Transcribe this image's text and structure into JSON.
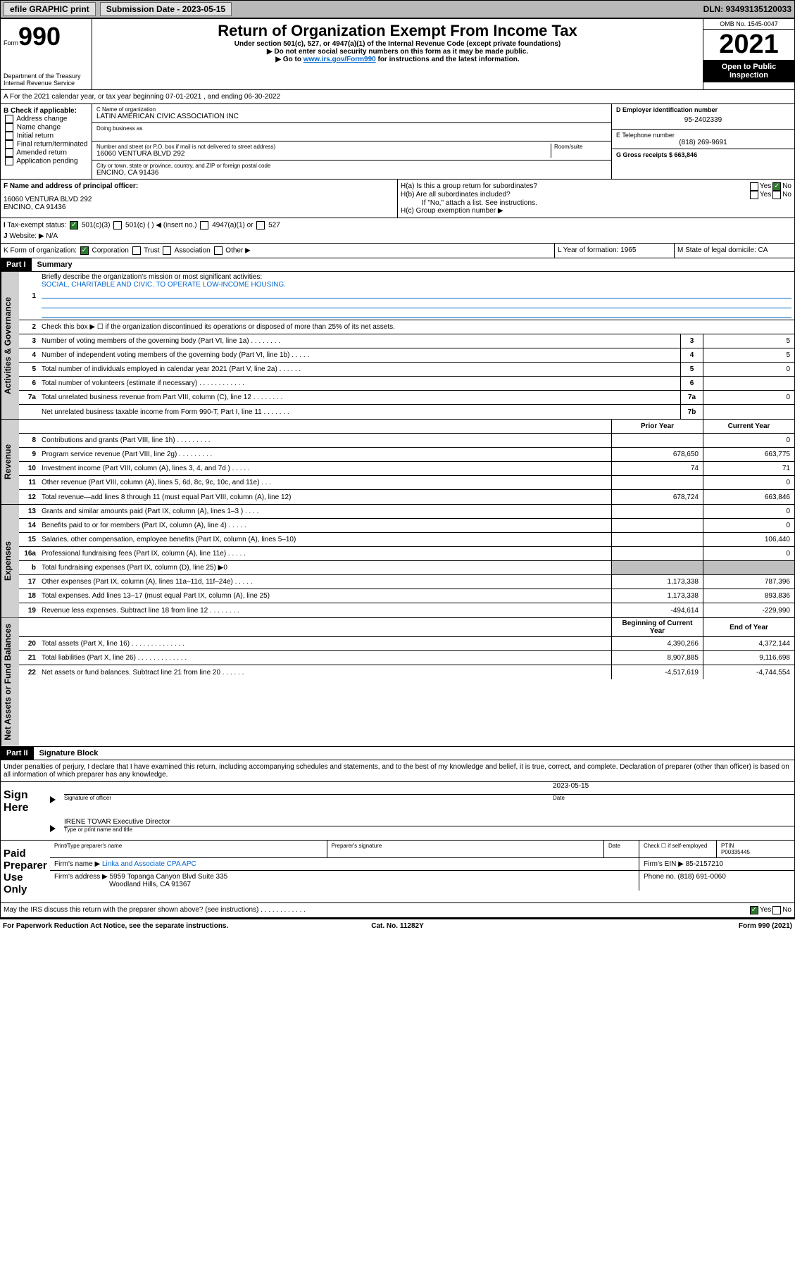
{
  "topbar": {
    "efile": "efile GRAPHIC print",
    "submission": "Submission Date - 2023-05-15",
    "dln": "DLN: 93493135120033"
  },
  "header": {
    "form": "Form",
    "num": "990",
    "dept": "Department of the Treasury",
    "irs": "Internal Revenue Service",
    "title": "Return of Organization Exempt From Income Tax",
    "sub1": "Under section 501(c), 527, or 4947(a)(1) of the Internal Revenue Code (except private foundations)",
    "sub2": "▶ Do not enter social security numbers on this form as it may be made public.",
    "sub3_pre": "▶ Go to ",
    "sub3_link": "www.irs.gov/Form990",
    "sub3_post": " for instructions and the latest information.",
    "omb": "OMB No. 1545-0047",
    "year": "2021",
    "inspect": "Open to Public Inspection"
  },
  "sectionA": {
    "line": "A For the 2021 calendar year, or tax year beginning 07-01-2021    , and ending 06-30-2022",
    "b_label": "B Check if applicable:",
    "b_items": [
      "Address change",
      "Name change",
      "Initial return",
      "Final return/terminated",
      "Amended return",
      "Application pending"
    ],
    "c_label": "C Name of organization",
    "c_name": "LATIN AMERICAN CIVIC ASSOCIATION INC",
    "dba": "Doing business as",
    "addr_label": "Number and street (or P.O. box if mail is not delivered to street address)",
    "room": "Room/suite",
    "addr": "16060 VENTURA BLVD 292",
    "city_label": "City or town, state or province, country, and ZIP or foreign postal code",
    "city": "ENCINO, CA  91436",
    "d_label": "D Employer identification number",
    "d_val": "95-2402339",
    "e_label": "E Telephone number",
    "e_val": "(818) 269-9691",
    "g_label": "G Gross receipts $ 663,846",
    "f_label": "F Name and address of principal officer:",
    "f_addr1": "16060 VENTURA BLVD 292",
    "f_addr2": "ENCINO, CA  91436",
    "ha": "H(a)  Is this a group return for subordinates?",
    "hb": "H(b)  Are all subordinates included?",
    "hb_note": "If \"No,\" attach a list. See instructions.",
    "hc": "H(c)  Group exemption number ▶",
    "i_label": "Tax-exempt status:",
    "i_501c3": "501(c)(3)",
    "i_501c": "501(c) (  ) ◀ (insert no.)",
    "i_4947": "4947(a)(1) or",
    "i_527": "527",
    "j_label": "Website: ▶",
    "j_val": "N/A",
    "k_label": "K Form of organization:",
    "k_corp": "Corporation",
    "k_trust": "Trust",
    "k_assoc": "Association",
    "k_other": "Other ▶",
    "l_label": "L Year of formation: 1965",
    "m_label": "M State of legal domicile: CA"
  },
  "part1": {
    "header": "Part I",
    "title": "Summary",
    "vert_gov": "Activities & Governance",
    "vert_rev": "Revenue",
    "vert_exp": "Expenses",
    "vert_net": "Net Assets or Fund Balances",
    "q1": "Briefly describe the organization's mission or most significant activities:",
    "q1_ans": "SOCIAL, CHARITABLE AND CIVIC. TO OPERATE LOW-INCOME HOUSING.",
    "q2": "Check this box ▶ ☐  if the organization discontinued its operations or disposed of more than 25% of its net assets.",
    "rows_gov": [
      {
        "n": "3",
        "d": "Number of voting members of the governing body (Part VI, line 1a)   .   .   .   .   .   .   .   .",
        "b": "3",
        "v": "5"
      },
      {
        "n": "4",
        "d": "Number of independent voting members of the governing body (Part VI, line 1b)   .   .   .   .   .",
        "b": "4",
        "v": "5"
      },
      {
        "n": "5",
        "d": "Total number of individuals employed in calendar year 2021 (Part V, line 2a)   .   .   .   .   .   .",
        "b": "5",
        "v": "0"
      },
      {
        "n": "6",
        "d": "Total number of volunteers (estimate if necessary)   .   .   .   .   .   .   .   .   .   .   .   .",
        "b": "6",
        "v": ""
      },
      {
        "n": "7a",
        "d": "Total unrelated business revenue from Part VIII, column (C), line 12   .   .   .   .   .   .   .   .",
        "b": "7a",
        "v": "0"
      },
      {
        "n": "",
        "d": "Net unrelated business taxable income from Form 990-T, Part I, line 11   .   .   .   .   .   .   .",
        "b": "7b",
        "v": ""
      }
    ],
    "col_prior": "Prior Year",
    "col_current": "Current Year",
    "rows_rev": [
      {
        "n": "8",
        "d": "Contributions and grants (Part VIII, line 1h)   .   .   .   .   .   .   .   .   .",
        "p": "",
        "c": "0"
      },
      {
        "n": "9",
        "d": "Program service revenue (Part VIII, line 2g)   .   .   .   .   .   .   .   .   .",
        "p": "678,650",
        "c": "663,775"
      },
      {
        "n": "10",
        "d": "Investment income (Part VIII, column (A), lines 3, 4, and 7d )   .   .   .   .   .",
        "p": "74",
        "c": "71"
      },
      {
        "n": "11",
        "d": "Other revenue (Part VIII, column (A), lines 5, 6d, 8c, 9c, 10c, and 11e)   .   .   .",
        "p": "",
        "c": "0"
      },
      {
        "n": "12",
        "d": "Total revenue—add lines 8 through 11 (must equal Part VIII, column (A), line 12)",
        "p": "678,724",
        "c": "663,846"
      }
    ],
    "rows_exp": [
      {
        "n": "13",
        "d": "Grants and similar amounts paid (Part IX, column (A), lines 1–3 )   .   .   .   .",
        "p": "",
        "c": "0"
      },
      {
        "n": "14",
        "d": "Benefits paid to or for members (Part IX, column (A), line 4)   .   .   .   .   .",
        "p": "",
        "c": "0"
      },
      {
        "n": "15",
        "d": "Salaries, other compensation, employee benefits (Part IX, column (A), lines 5–10)",
        "p": "",
        "c": "106,440"
      },
      {
        "n": "16a",
        "d": "Professional fundraising fees (Part IX, column (A), line 11e)   .   .   .   .   .",
        "p": "",
        "c": "0"
      },
      {
        "n": "b",
        "d": "Total fundraising expenses (Part IX, column (D), line 25) ▶0",
        "p": "shade",
        "c": "shade"
      },
      {
        "n": "17",
        "d": "Other expenses (Part IX, column (A), lines 11a–11d, 11f–24e)   .   .   .   .   .",
        "p": "1,173,338",
        "c": "787,396"
      },
      {
        "n": "18",
        "d": "Total expenses. Add lines 13–17 (must equal Part IX, column (A), line 25)",
        "p": "1,173,338",
        "c": "893,836"
      },
      {
        "n": "19",
        "d": "Revenue less expenses. Subtract line 18 from line 12   .   .   .   .   .   .   .   .",
        "p": "-494,614",
        "c": "-229,990"
      }
    ],
    "col_begin": "Beginning of Current Year",
    "col_end": "End of Year",
    "rows_net": [
      {
        "n": "20",
        "d": "Total assets (Part X, line 16)   .   .   .   .   .   .   .   .   .   .   .   .   .   .",
        "p": "4,390,266",
        "c": "4,372,144"
      },
      {
        "n": "21",
        "d": "Total liabilities (Part X, line 26)   .   .   .   .   .   .   .   .   .   .   .   .   .",
        "p": "8,907,885",
        "c": "9,116,698"
      },
      {
        "n": "22",
        "d": "Net assets or fund balances. Subtract line 21 from line 20   .   .   .   .   .   .",
        "p": "-4,517,619",
        "c": "-4,744,554"
      }
    ]
  },
  "part2": {
    "header": "Part II",
    "title": "Signature Block",
    "decl": "Under penalties of perjury, I declare that I have examined this return, including accompanying schedules and statements, and to the best of my knowledge and belief, it is true, correct, and complete. Declaration of preparer (other than officer) is based on all information of which preparer has any knowledge.",
    "sign_here": "Sign Here",
    "sig_officer": "Signature of officer",
    "sig_date": "2023-05-15",
    "date_lbl": "Date",
    "sig_name": "IRENE TOVAR Executive Director",
    "sig_type": "Type or print name and title",
    "paid": "Paid Preparer Use Only",
    "prep_name_lbl": "Print/Type preparer's name",
    "prep_sig_lbl": "Preparer's signature",
    "prep_check": "Check ☐ if self-employed",
    "ptin_lbl": "PTIN",
    "ptin": "P00335445",
    "firm_name_lbl": "Firm's name    ▶",
    "firm_name": "Linka and Associate CPA APC",
    "firm_ein_lbl": "Firm's EIN ▶",
    "firm_ein": "85-2157210",
    "firm_addr_lbl": "Firm's address ▶",
    "firm_addr1": "5959 Topanga Canyon Blvd Suite 335",
    "firm_addr2": "Woodland Hills, CA  91367",
    "phone_lbl": "Phone no.",
    "phone": "(818) 691-0060",
    "discuss": "May the IRS discuss this return with the preparer shown above? (see instructions)   .   .   .   .   .   .   .   .   .   .   .   .",
    "yes": "Yes",
    "no": "No"
  },
  "footer": {
    "left": "For Paperwork Reduction Act Notice, see the separate instructions.",
    "mid": "Cat. No. 11282Y",
    "right": "Form 990 (2021)"
  }
}
